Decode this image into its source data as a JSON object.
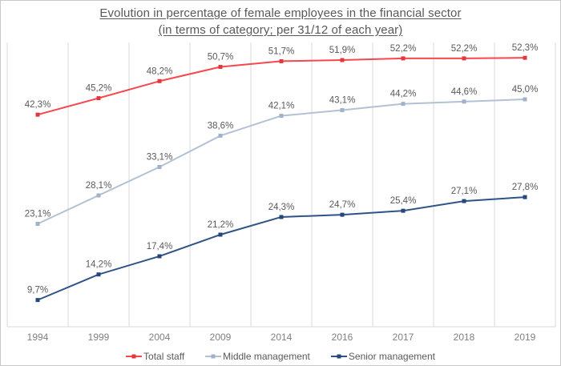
{
  "title": {
    "line1": "Evolution in percentage of female employees in the financial sector",
    "line2": "(in terms of category; per 31/12 of each year)"
  },
  "chart_data": {
    "type": "line",
    "categories": [
      "1994",
      "1999",
      "2004",
      "2009",
      "2014",
      "2016",
      "2017",
      "2018",
      "2019"
    ],
    "series": [
      {
        "name": "Total staff",
        "color": "#f7474e",
        "marker_color": "#e13840",
        "values": [
          42.3,
          45.2,
          48.2,
          50.7,
          51.7,
          51.9,
          52.2,
          52.2,
          52.3
        ],
        "labels": [
          "42,3%",
          "45,2%",
          "48,2%",
          "50,7%",
          "51,7%",
          "51,9%",
          "52,2%",
          "52,2%",
          "52,3%"
        ]
      },
      {
        "name": "Middle management",
        "color": "#b3c1d4",
        "marker_color": "#9fb2c9",
        "values": [
          23.1,
          28.1,
          33.1,
          38.6,
          42.1,
          43.1,
          44.2,
          44.6,
          45.0
        ],
        "labels": [
          "23,1%",
          "28,1%",
          "33,1%",
          "38,6%",
          "42,1%",
          "43,1%",
          "44,2%",
          "44,6%",
          "45,0%"
        ]
      },
      {
        "name": "Senior management",
        "color": "#2e5387",
        "marker_color": "#25477a",
        "values": [
          9.7,
          14.2,
          17.4,
          21.2,
          24.3,
          24.7,
          25.4,
          27.1,
          27.8
        ],
        "labels": [
          "9,7%",
          "14,2%",
          "17,4%",
          "21,2%",
          "24,3%",
          "24,7%",
          "25,4%",
          "27,1%",
          "27,8%"
        ]
      }
    ],
    "ylim": [
      5,
      55
    ],
    "xlabel": "",
    "ylabel": "",
    "grid": "vertical-only",
    "data_labels": true,
    "legend_position": "bottom"
  },
  "colors": {
    "gridline": "#d9d9d9",
    "axis_line": "#d9d9d9",
    "data_label_text": "#595959",
    "tick_text": "#7f7f7f",
    "legend_text": "#595959",
    "title_text": "#595959",
    "border": "#c9c9c9",
    "background": "#ffffff"
  }
}
